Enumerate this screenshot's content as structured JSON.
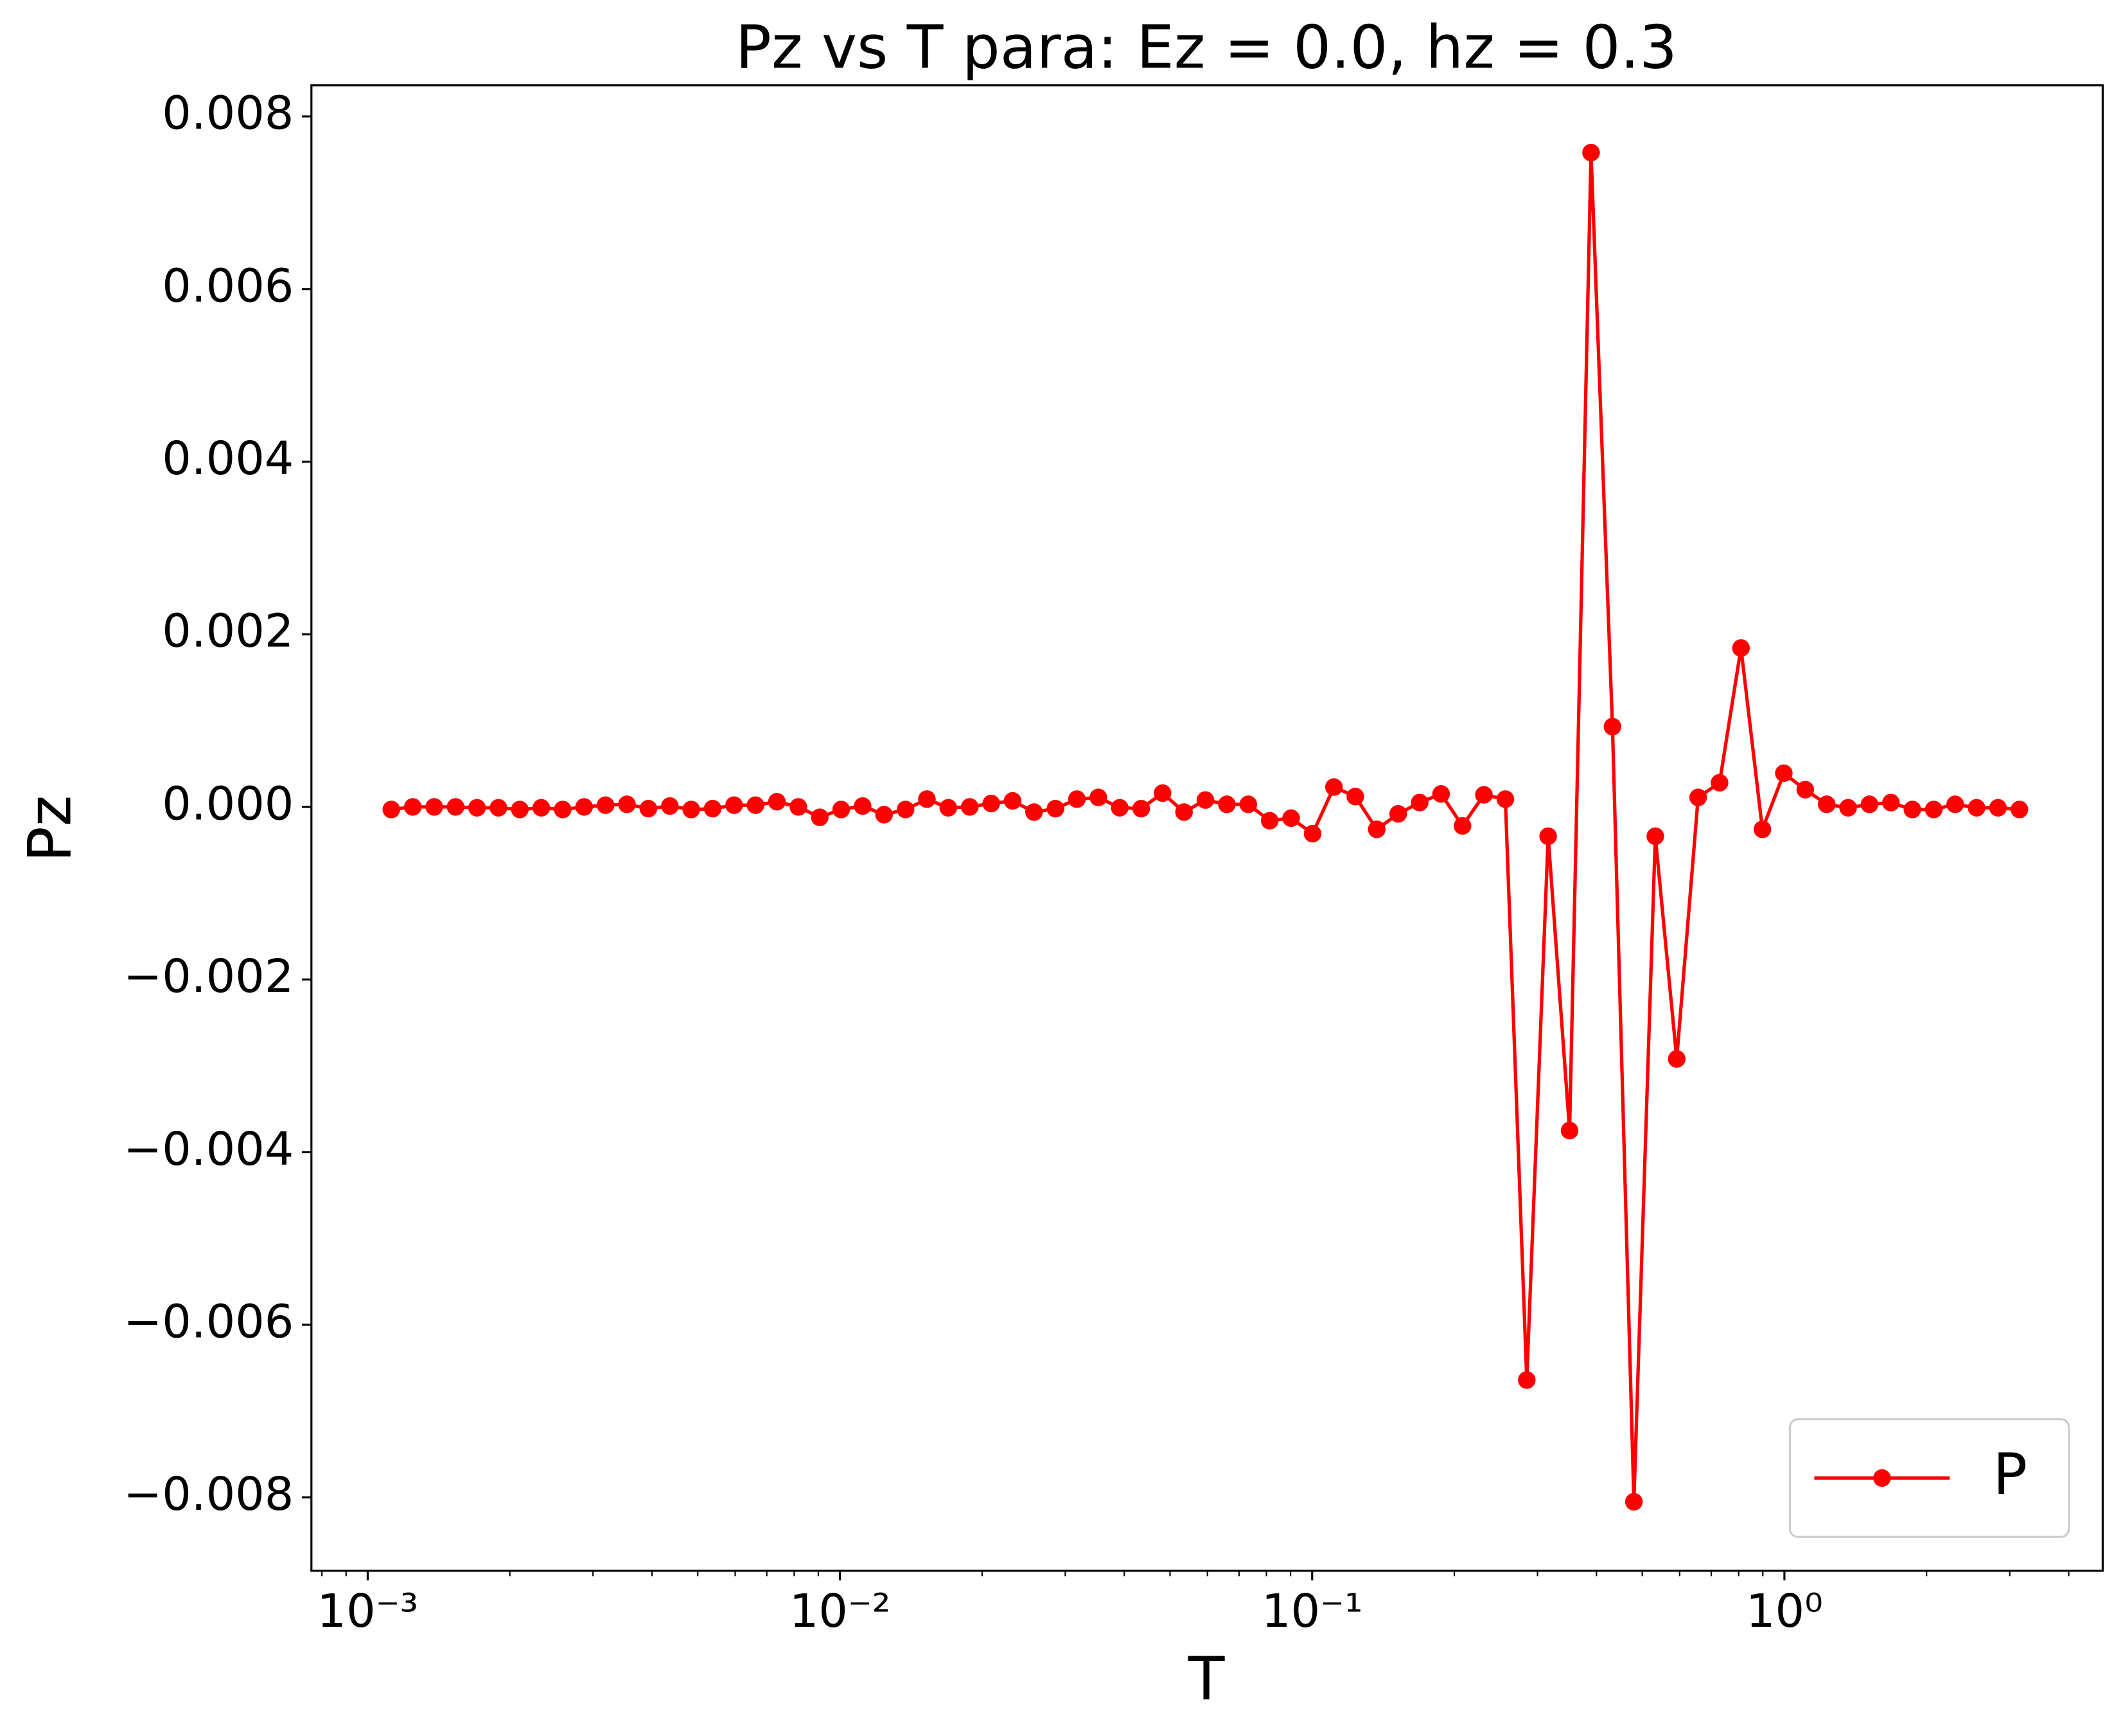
{
  "chart_data": {
    "type": "line",
    "title": "Pz vs T para: Ez = 0.0, hz = 0.3",
    "x_label": "T",
    "y_label": "Pz",
    "x_scale": "log",
    "x": [
      0.001122,
      0.001246,
      0.001383,
      0.001535,
      0.001704,
      0.001892,
      0.0021,
      0.002331,
      0.002588,
      0.002873,
      0.003189,
      0.00354,
      0.00393,
      0.004363,
      0.004843,
      0.005376,
      0.005968,
      0.006625,
      0.007355,
      0.008165,
      0.009064,
      0.01006,
      0.01117,
      0.0124,
      0.01377,
      0.01528,
      0.01696,
      0.01883,
      0.02091,
      0.02321,
      0.02576,
      0.0286,
      0.03175,
      0.03525,
      0.03913,
      0.04344,
      0.04822,
      0.05353,
      0.05942,
      0.06597,
      0.07323,
      0.08129,
      0.09024,
      0.1002,
      0.1112,
      0.1234,
      0.137,
      0.1521,
      0.1689,
      0.1875,
      0.2081,
      0.231,
      0.2565,
      0.2847,
      0.316,
      0.3508,
      0.3895,
      0.4324,
      0.48,
      0.5328,
      0.5915,
      0.6566,
      0.7289,
      0.8091,
      0.8982,
      0.9971,
      1.107,
      1.229,
      1.364,
      1.514,
      1.681,
      1.866,
      2.071,
      2.299,
      2.552,
      2.833,
      3.145
    ],
    "series": [
      {
        "name": "P",
        "color": "#ff0000",
        "marker": "circle",
        "values": [
          -3e-05,
          0,
          0,
          0,
          -1e-05,
          -1e-05,
          -3e-05,
          -1e-05,
          -3e-05,
          0,
          2e-05,
          3e-05,
          -2e-05,
          1e-05,
          -3e-05,
          -2e-05,
          2e-05,
          2e-05,
          6e-05,
          0,
          -0.00012,
          -3e-05,
          1e-05,
          -9e-05,
          -3e-05,
          9e-05,
          -1e-05,
          0,
          4e-05,
          7e-05,
          -6e-05,
          -2e-05,
          9e-05,
          0.00011,
          -1e-05,
          -2e-05,
          0.00016,
          -6e-05,
          8e-05,
          3e-05,
          3e-05,
          -0.00016,
          -0.00013,
          -0.00031,
          0.00023,
          0.00012,
          -0.00026,
          -8e-05,
          5e-05,
          0.00015,
          -0.00022,
          0.00014,
          9e-05,
          -0.00664,
          -0.00034,
          -0.00375,
          0.00758,
          0.00093,
          -0.00805,
          -0.00034,
          -0.00292,
          0.00011,
          0.00028,
          0.00184,
          -0.00026,
          0.00039,
          0.0002,
          3e-05,
          -1e-05,
          3e-05,
          5e-05,
          -3e-05,
          -3e-05,
          3e-05,
          -1e-05,
          -1e-05,
          -3e-05
        ]
      }
    ],
    "xlim": [
      0.00076,
      4.72
    ],
    "ylim": [
      -0.00885,
      0.00836
    ],
    "xticks": [
      {
        "value": 0.001,
        "label": "10⁻³"
      },
      {
        "value": 0.01,
        "label": "10⁻²"
      },
      {
        "value": 0.1,
        "label": "10⁻¹"
      },
      {
        "value": 1,
        "label": "10⁰"
      }
    ],
    "xminorticks": [
      0.0008,
      0.0009,
      0.002,
      0.003,
      0.004,
      0.005,
      0.006,
      0.007,
      0.008,
      0.009,
      0.02,
      0.03,
      0.04,
      0.05,
      0.06,
      0.07,
      0.08,
      0.09,
      0.2,
      0.3,
      0.4,
      0.5,
      0.6,
      0.7,
      0.8,
      0.9,
      2,
      3,
      4
    ],
    "yticks": [
      {
        "value": -0.008,
        "label": "−0.008"
      },
      {
        "value": -0.006,
        "label": "−0.006"
      },
      {
        "value": -0.004,
        "label": "−0.004"
      },
      {
        "value": -0.002,
        "label": "−0.002"
      },
      {
        "value": 0,
        "label": "0.000"
      },
      0.002,
      0.004,
      0.006,
      0.008
    ],
    "grid": false,
    "legend": "lower right"
  }
}
